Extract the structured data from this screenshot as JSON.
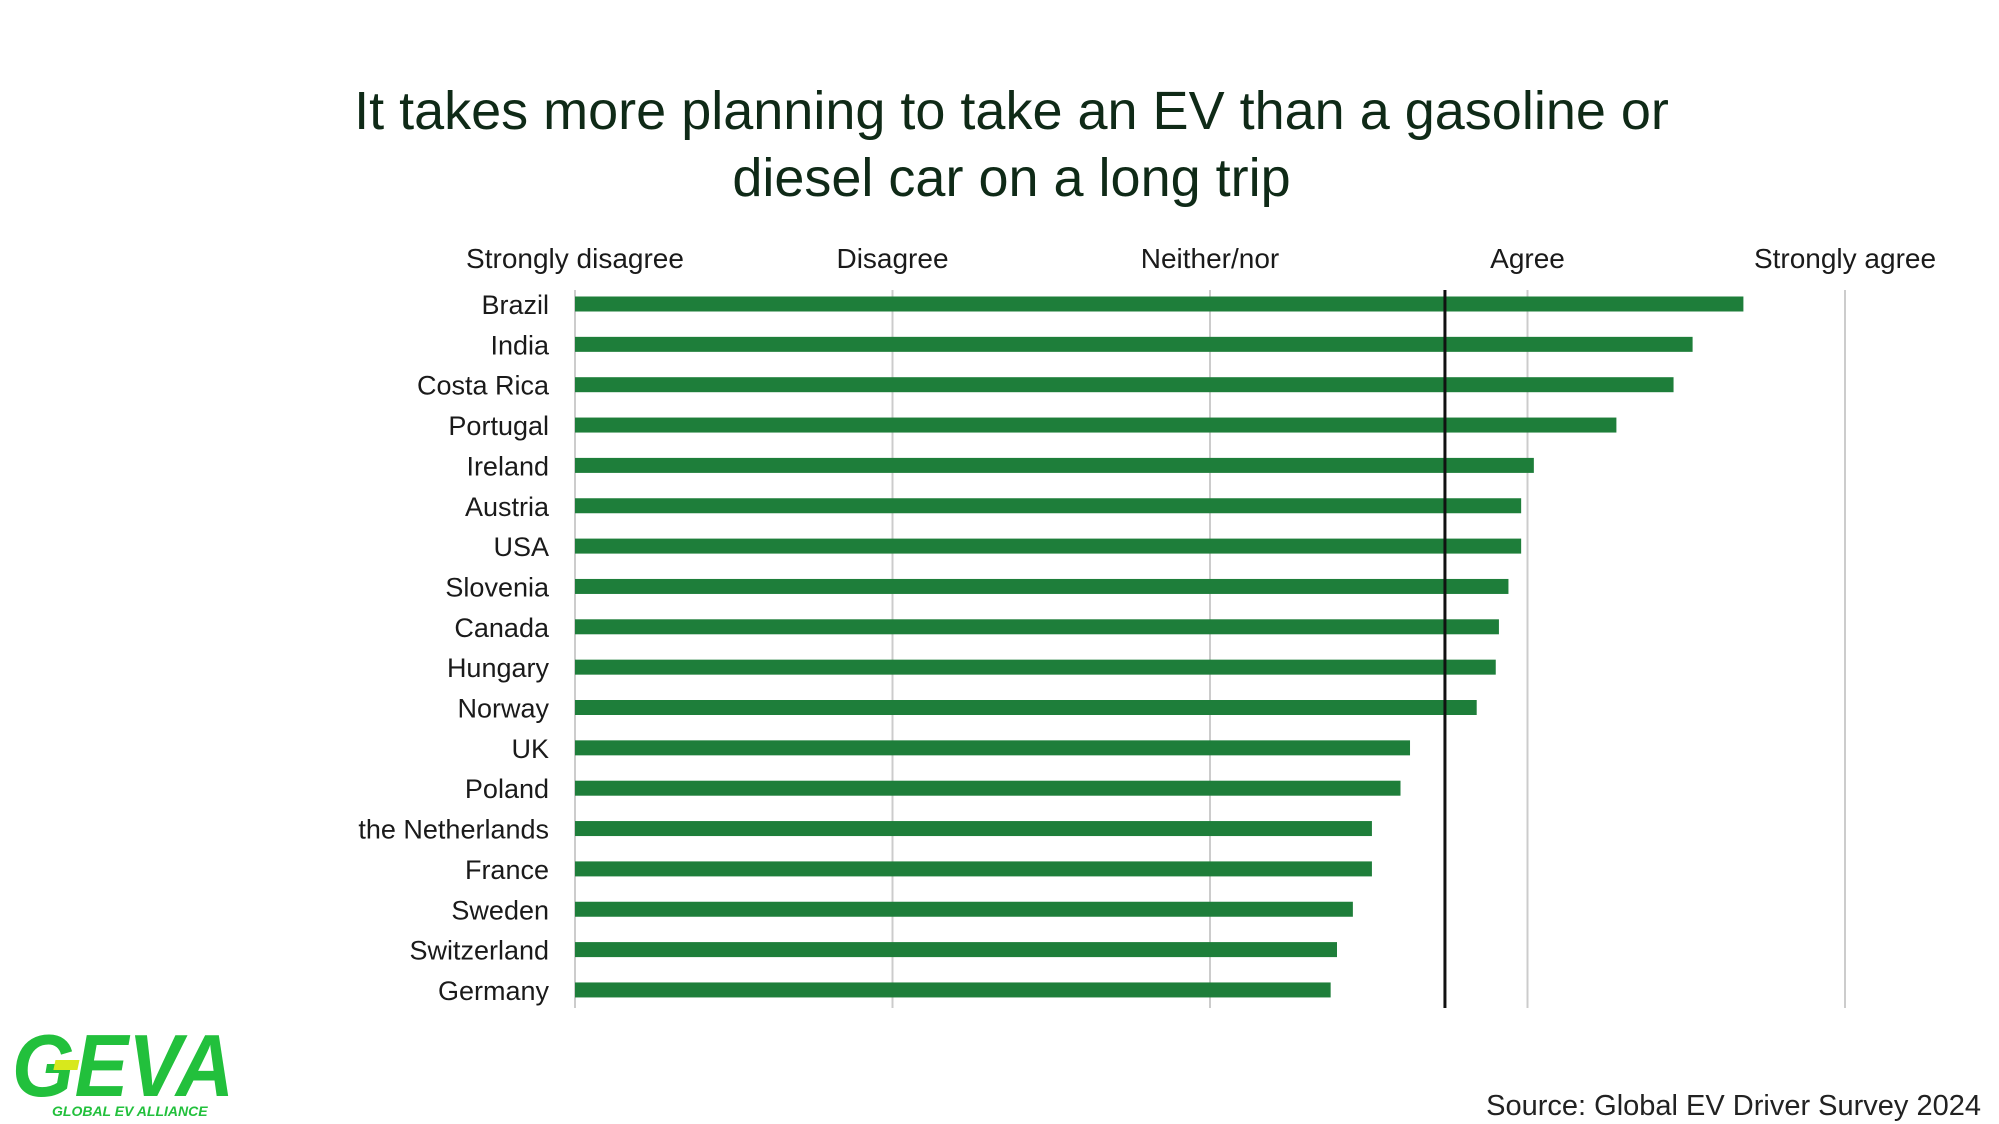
{
  "title": {
    "line1": "It takes more planning to take an EV than a gasoline or",
    "line2": "diesel car on a long trip"
  },
  "source": "Source: Global EV Driver Survey 2024",
  "logo": {
    "wordmark": "GEVA",
    "tagline": "GLOBAL EV ALLIANCE"
  },
  "colors": {
    "bar": "#1e7e3a",
    "grid": "#cccccc",
    "reference": "#111111",
    "logo": "#22c03c",
    "logo_accent": "#d8e81c"
  },
  "chart_data": {
    "type": "bar",
    "orientation": "horizontal",
    "title": "It takes more planning to take an EV than a gasoline or diesel car on a long trip",
    "scale_labels": [
      "Strongly disagree",
      "Disagree",
      "Neither/nor",
      "Agree",
      "Strongly agree"
    ],
    "xlim": [
      1,
      5
    ],
    "reference_value": 3.74,
    "categories": [
      "Brazil",
      "India",
      "Costa Rica",
      "Portugal",
      "Ireland",
      "Austria",
      "USA",
      "Slovenia",
      "Canada",
      "Hungary",
      "Norway",
      "UK",
      "Poland",
      "the Netherlands",
      "France",
      "Sweden",
      "Switzerland",
      "Germany"
    ],
    "values": [
      4.68,
      4.52,
      4.46,
      4.28,
      4.02,
      3.98,
      3.98,
      3.94,
      3.91,
      3.9,
      3.84,
      3.63,
      3.6,
      3.51,
      3.51,
      3.45,
      3.4,
      3.38
    ]
  }
}
